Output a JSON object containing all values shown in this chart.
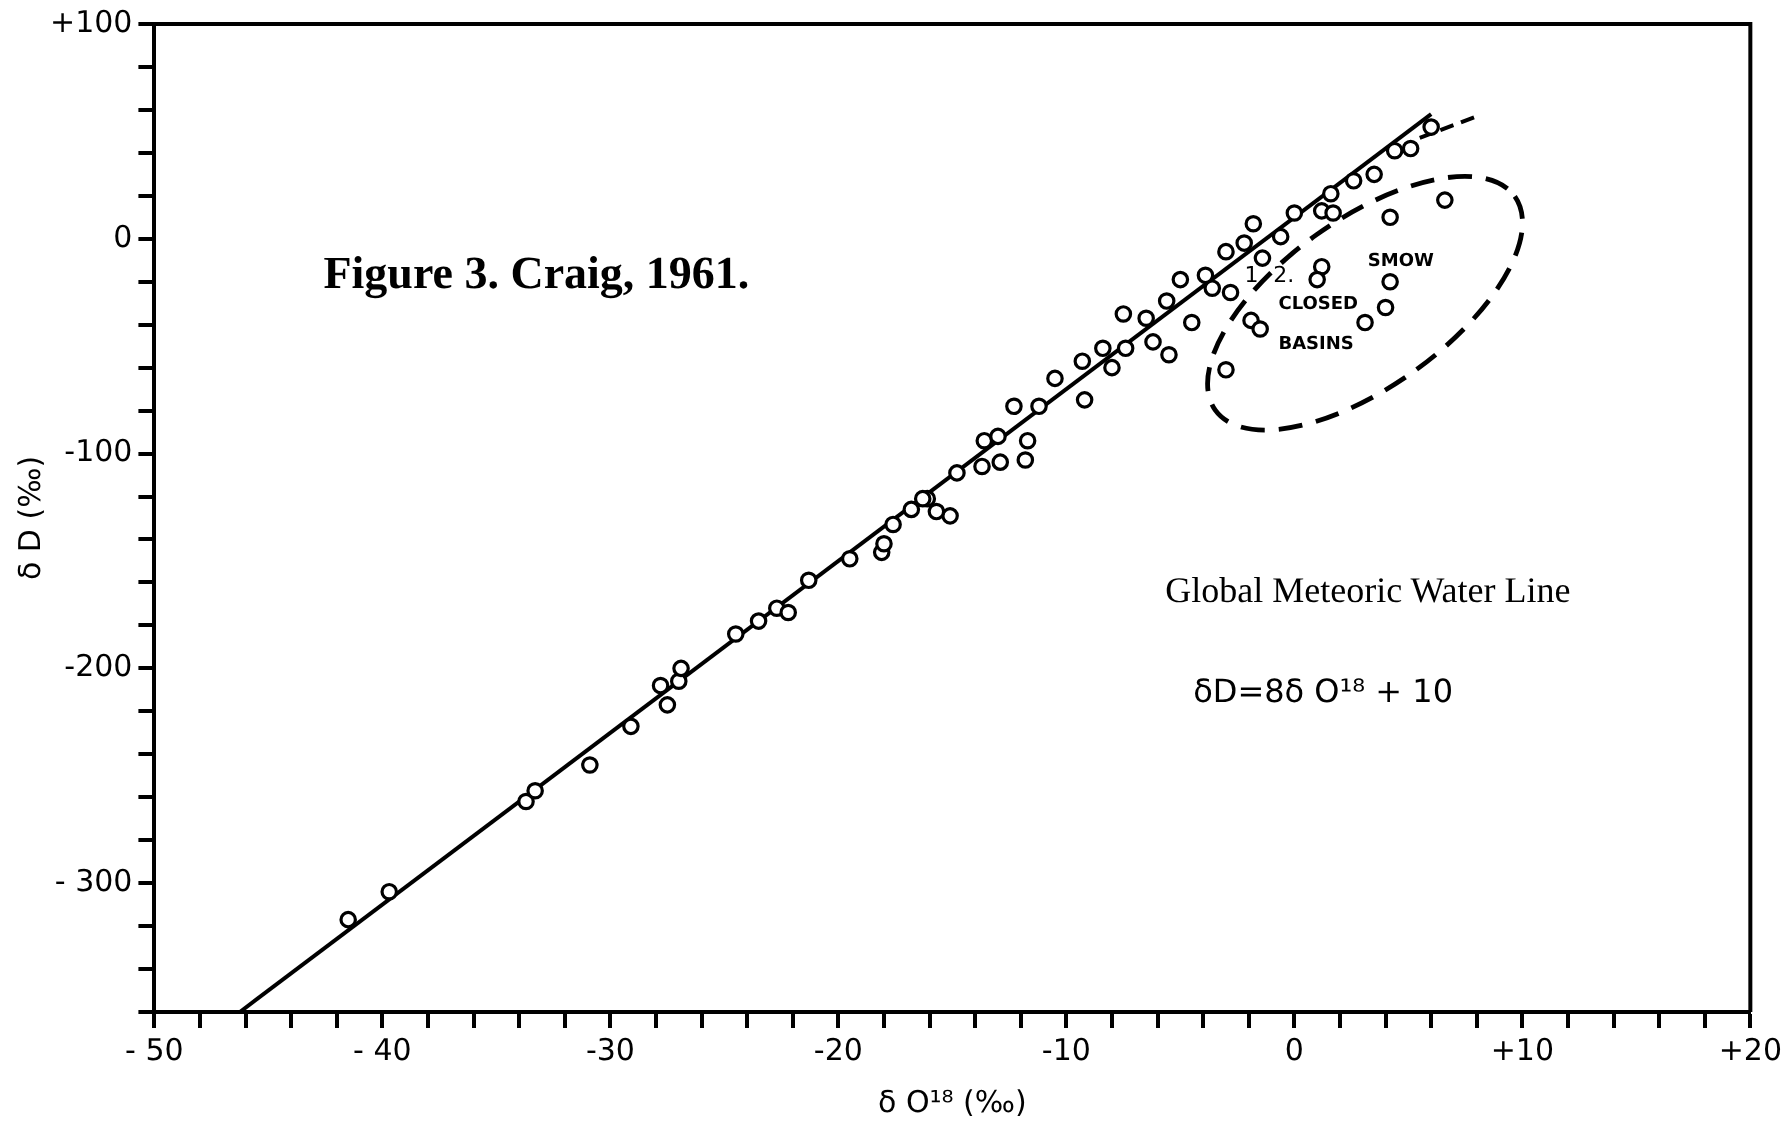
{
  "chart_data": {
    "type": "scatter",
    "xlabel": "δ O¹⁸ (‰)",
    "ylabel": "δ D (‰)",
    "annotations": [
      "Figure 3. Craig, 1961.",
      "SMOW",
      "CLOSED BASINS",
      "Global Meteoric Water Line",
      "δD=8δ O¹⁸ + 10",
      "1",
      "2."
    ],
    "xlim": [
      -50,
      20
    ],
    "ylim": [
      -360,
      100
    ],
    "xticks": [
      {
        "value": -50,
        "label": "- 50"
      },
      {
        "value": -48,
        "label": null
      },
      {
        "value": -46,
        "label": null
      },
      {
        "value": -44,
        "label": null
      },
      {
        "value": -42,
        "label": null
      },
      {
        "value": -40,
        "label": "- 40"
      },
      {
        "value": -38,
        "label": null
      },
      {
        "value": -36,
        "label": null
      },
      {
        "value": -34,
        "label": null
      },
      {
        "value": -32,
        "label": null
      },
      {
        "value": -30,
        "label": "-30"
      },
      {
        "value": -28,
        "label": null
      },
      {
        "value": -26,
        "label": null
      },
      {
        "value": -24,
        "label": null
      },
      {
        "value": -22,
        "label": null
      },
      {
        "value": -20,
        "label": "-20"
      },
      {
        "value": -18,
        "label": null
      },
      {
        "value": -16,
        "label": null
      },
      {
        "value": -14,
        "label": null
      },
      {
        "value": -12,
        "label": null
      },
      {
        "value": -10,
        "label": "-10"
      },
      {
        "value": -8,
        "label": null
      },
      {
        "value": -6,
        "label": null
      },
      {
        "value": -4,
        "label": null
      },
      {
        "value": -2,
        "label": null
      },
      0,
      {
        "value": 2,
        "label": null
      },
      {
        "value": 4,
        "label": null
      },
      {
        "value": 6,
        "label": null
      },
      {
        "value": 8,
        "label": null
      },
      {
        "value": 10,
        "label": "+10"
      },
      {
        "value": 12,
        "label": null
      },
      {
        "value": 14,
        "label": null
      },
      {
        "value": 16,
        "label": null
      },
      {
        "value": 18,
        "label": null
      },
      {
        "value": 20,
        "label": "+20"
      }
    ],
    "yticks": [
      {
        "value": -360,
        "label": null
      },
      {
        "value": -340,
        "label": null
      },
      {
        "value": -320,
        "label": null
      },
      {
        "value": -300,
        "label": "- 300"
      },
      {
        "value": -280,
        "label": null
      },
      {
        "value": -260,
        "label": null
      },
      {
        "value": -240,
        "label": null
      },
      {
        "value": -220,
        "label": null
      },
      {
        "value": -200,
        "label": "-200"
      },
      {
        "value": -180,
        "label": null
      },
      {
        "value": -160,
        "label": null
      },
      {
        "value": -140,
        "label": null
      },
      {
        "value": -120,
        "label": null
      },
      {
        "value": -100,
        "label": "-100"
      },
      {
        "value": -80,
        "label": null
      },
      {
        "value": -60,
        "label": null
      },
      {
        "value": -40,
        "label": null
      },
      {
        "value": -20,
        "label": null
      },
      0,
      {
        "value": 20,
        "label": null
      },
      {
        "value": 40,
        "label": null
      },
      {
        "value": 60,
        "label": null
      },
      {
        "value": 80,
        "label": null
      },
      {
        "value": 100,
        "label": "+100"
      }
    ],
    "series": [
      {
        "color": "#000000",
        "marker": "circle",
        "x": [
          -41.5,
          -39.7,
          -33.7,
          -33.3,
          -30.9,
          -29.1,
          -27.5,
          -27.8,
          -27.0,
          -26.9,
          -24.5,
          -23.5,
          -22.7,
          -22.2,
          -21.3,
          -19.5,
          -18.1,
          -17.6,
          -16.1,
          -16.8,
          -18.0,
          -16.3,
          -15.1,
          -15.7,
          -14.8,
          -13.7,
          -12.9,
          -11.8,
          -13.6,
          -13.0,
          -11.7,
          -12.3,
          -11.2,
          -10.5,
          -9.2,
          -9.3,
          -8.4,
          -8.0,
          -7.5,
          -7.4,
          -6.5,
          -6.2,
          -5.5,
          -5.6,
          -5.0,
          -4.5,
          -3.9,
          -3.6,
          -3.0,
          -2.8,
          -2.2,
          -1.8,
          -1.4,
          -0.6,
          0.0,
          1.2,
          1.7,
          1.6,
          2.6,
          3.5,
          4.4,
          5.1,
          6.0,
          4.2,
          6.6,
          1.2,
          1.0,
          4.2,
          4.0,
          3.1,
          -1.9,
          -1.5,
          -3.0
        ],
        "values": [
          -317,
          -304,
          -262,
          -257,
          -245,
          -227,
          -217,
          -208,
          -206,
          -200,
          -184,
          -178,
          -172,
          -174,
          -159,
          -149,
          -146,
          -133,
          -121,
          -126,
          -142,
          -121,
          -129,
          -127,
          -109,
          -106,
          -104,
          -103,
          -94,
          -92,
          -94,
          -78,
          -78,
          -65,
          -75,
          -57,
          -51,
          -60,
          -35,
          -51,
          -37,
          -48,
          -54,
          -29,
          -19,
          -39,
          -17,
          -23,
          -6,
          -25,
          -2,
          7,
          -9,
          1,
          12,
          13,
          12,
          21,
          27,
          30,
          41,
          42,
          52,
          10,
          18,
          -13,
          -19,
          -20,
          -32,
          -39,
          -38,
          -42,
          -61
        ]
      },
      {
        "type": "line",
        "color": "#000000",
        "marker": "none",
        "line_style": "solid",
        "x": [
          -46.25,
          6
        ],
        "values": [
          -360,
          58
        ]
      },
      {
        "type": "line",
        "color": "#000000",
        "marker": "none",
        "line_style": "dashed",
        "x": [
          5.5,
          8
        ],
        "values": [
          47,
          57
        ]
      }
    ]
  }
}
